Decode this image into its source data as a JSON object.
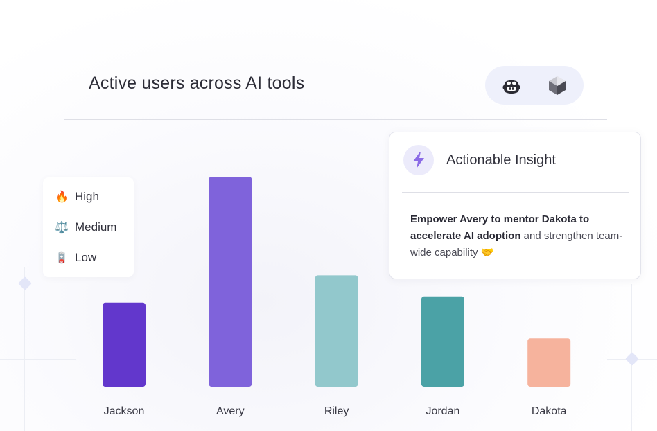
{
  "header": {
    "title": "Active users across AI tools",
    "tools": [
      {
        "name": "copilot-icon"
      },
      {
        "name": "cube-tool-icon"
      }
    ]
  },
  "legend": {
    "items": [
      {
        "glyph": "🔥",
        "icon": "fire-icon",
        "label": "High"
      },
      {
        "glyph": "⚖️",
        "icon": "scale-icon",
        "label": "Medium"
      },
      {
        "glyph": "🪫",
        "icon": "low-battery-icon",
        "label": "Low"
      }
    ]
  },
  "insight": {
    "title": "Actionable Insight",
    "icon": "lightning-icon",
    "body_strong": "Empower Avery to mentor Dakota to accelerate AI adoption",
    "body_rest": " and strengthen team-wide capability",
    "body_emoji": "🤝"
  },
  "chart_data": {
    "type": "bar",
    "title": "Active users across AI tools",
    "categories": [
      "Jackson",
      "Avery",
      "Riley",
      "Jordan",
      "Dakota"
    ],
    "values": [
      40,
      100,
      53,
      43,
      23
    ],
    "colors": [
      "#6237cc",
      "#7f63db",
      "#92c8cc",
      "#4ba2a6",
      "#f6b39d"
    ],
    "ylim": [
      0,
      100
    ],
    "xlabel": "",
    "ylabel": "",
    "grid": false
  }
}
